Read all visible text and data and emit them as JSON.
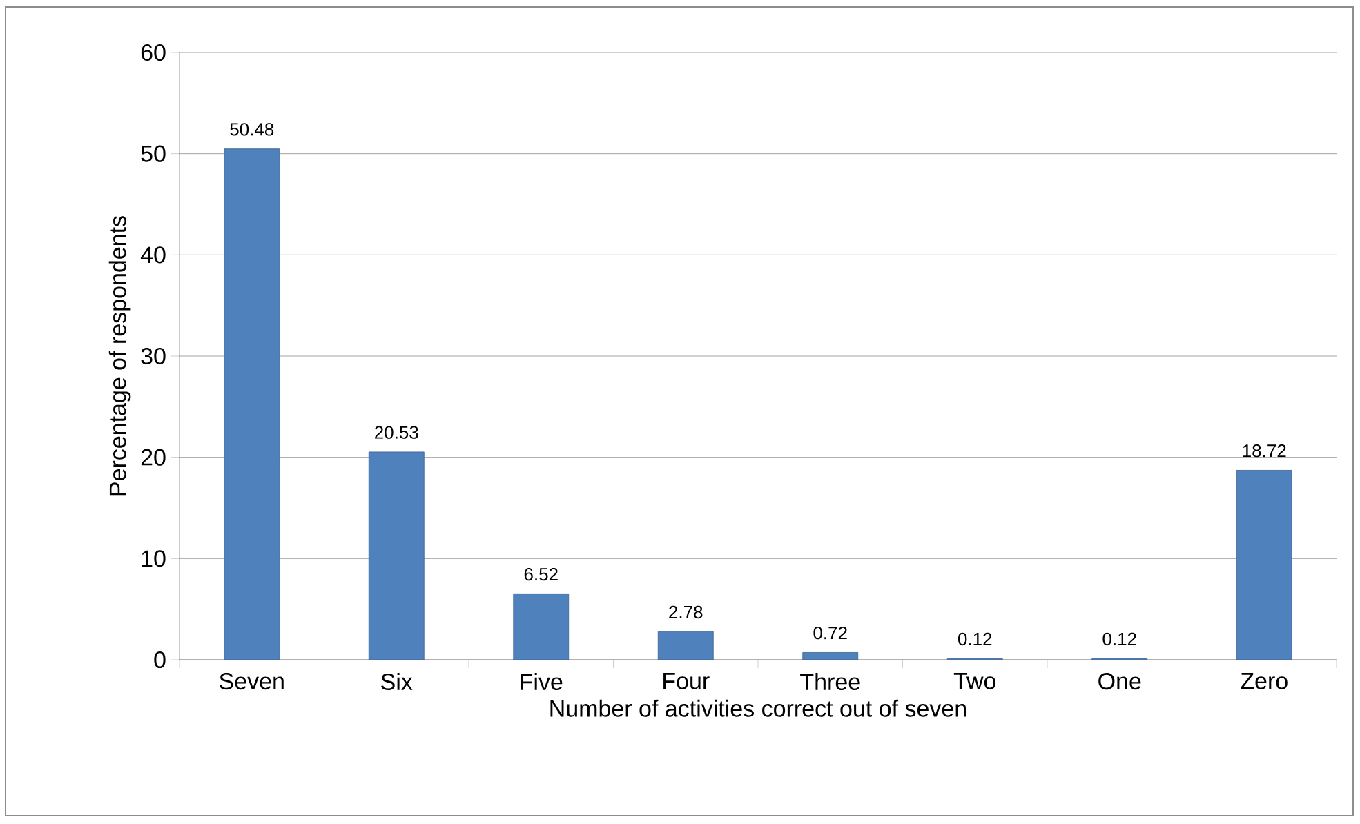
{
  "chart_data": {
    "type": "bar",
    "xlabel": "Number of activities correct out of seven",
    "ylabel": "Percentage of respondents",
    "categories": [
      "Seven",
      "Six",
      "Five",
      "Four",
      "Three",
      "Two",
      "One",
      "Zero"
    ],
    "values": [
      50.48,
      20.53,
      6.52,
      2.78,
      0.72,
      0.12,
      0.12,
      18.72
    ],
    "color": "#4f81bd",
    "ylim": [
      0,
      60
    ],
    "yticks": [
      0,
      10,
      20,
      30,
      40,
      50,
      60
    ],
    "grid": "y",
    "data_labels": true
  }
}
